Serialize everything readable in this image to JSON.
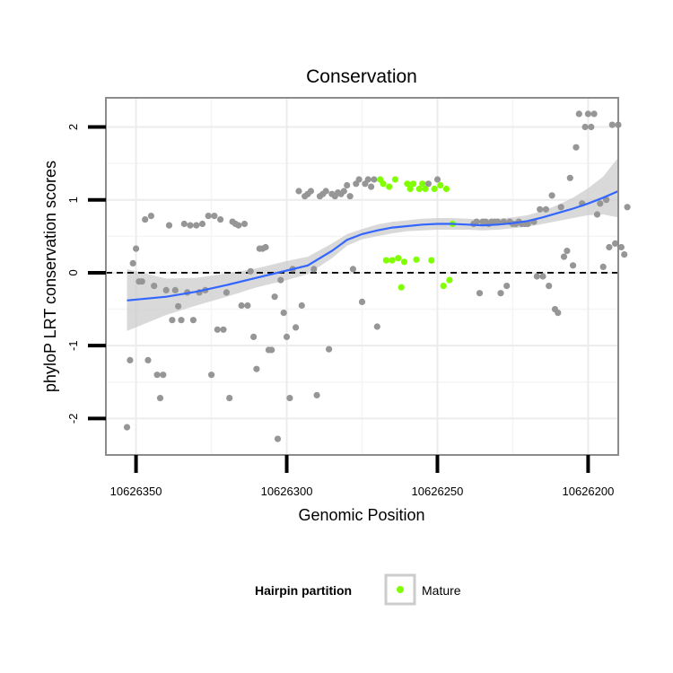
{
  "chart_data": {
    "type": "scatter",
    "title": "Conservation",
    "xlabel": "Genomic Position",
    "ylabel": "phyloP LRT conservation scores",
    "x_reversed": true,
    "xlim": [
      10626360,
      10626190
    ],
    "ylim": [
      -2.5,
      2.4
    ],
    "x_ticks": [
      10626350,
      10626300,
      10626250,
      10626200
    ],
    "x_tick_labels": [
      "10626350",
      "10626300",
      "10626250",
      "10626200"
    ],
    "y_ticks": [
      -2,
      -1,
      0,
      1,
      2
    ],
    "y_tick_labels": [
      "-2",
      "-1",
      "0",
      "1",
      "2"
    ],
    "grid": true,
    "reference_line": {
      "y": 0,
      "style": "dashed",
      "color": "#000000"
    },
    "legend": {
      "title": "Hairpin partition",
      "placement": "bottom",
      "entries": [
        {
          "label": "Mature",
          "color": "#7fff00"
        }
      ]
    },
    "colors": {
      "other": "#969696",
      "mature": "#7fff00",
      "smooth": "#3366ff",
      "ribbon": "#cccccc"
    },
    "series": [
      {
        "name": "",
        "color": "#969696",
        "points": [
          [
            10626353,
            -2.12
          ],
          [
            10626352,
            -1.2
          ],
          [
            10626351,
            0.13
          ],
          [
            10626350,
            0.33
          ],
          [
            10626349,
            -0.12
          ],
          [
            10626348,
            -0.12
          ],
          [
            10626347,
            0.73
          ],
          [
            10626346,
            -1.2
          ],
          [
            10626345,
            0.78
          ],
          [
            10626344,
            -0.18
          ],
          [
            10626343,
            -1.4
          ],
          [
            10626342,
            -1.72
          ],
          [
            10626341,
            -1.4
          ],
          [
            10626340,
            -0.24
          ],
          [
            10626339,
            0.65
          ],
          [
            10626338,
            -0.65
          ],
          [
            10626337,
            -0.24
          ],
          [
            10626336,
            -0.46
          ],
          [
            10626335,
            -0.65
          ],
          [
            10626334,
            0.67
          ],
          [
            10626333,
            -0.27
          ],
          [
            10626332,
            0.65
          ],
          [
            10626331,
            -0.65
          ],
          [
            10626330,
            0.65
          ],
          [
            10626329,
            -0.27
          ],
          [
            10626328,
            0.67
          ],
          [
            10626327,
            -0.24
          ],
          [
            10626326,
            0.78
          ],
          [
            10626325,
            -1.4
          ],
          [
            10626324,
            0.78
          ],
          [
            10626323,
            -0.78
          ],
          [
            10626322,
            0.73
          ],
          [
            10626321,
            -0.78
          ],
          [
            10626320,
            -0.27
          ],
          [
            10626319,
            -1.72
          ],
          [
            10626318,
            0.7
          ],
          [
            10626317,
            0.67
          ],
          [
            10626316,
            0.65
          ],
          [
            10626315,
            -0.45
          ],
          [
            10626314,
            0.67
          ],
          [
            10626313,
            -0.45
          ],
          [
            10626312,
            0.02
          ],
          [
            10626311,
            -0.88
          ],
          [
            10626310,
            -1.32
          ],
          [
            10626309,
            0.33
          ],
          [
            10626308,
            0.33
          ],
          [
            10626307,
            0.35
          ],
          [
            10626306,
            -1.06
          ],
          [
            10626305,
            -1.06
          ],
          [
            10626304,
            -0.33
          ],
          [
            10626303,
            -2.28
          ],
          [
            10626302,
            -0.1
          ],
          [
            10626301,
            -0.55
          ],
          [
            10626300,
            -0.88
          ],
          [
            10626299,
            -1.72
          ],
          [
            10626298,
            0.05
          ],
          [
            10626297,
            -0.75
          ],
          [
            10626296,
            1.12
          ],
          [
            10626295,
            -0.45
          ],
          [
            10626294,
            1.05
          ],
          [
            10626293,
            1.08
          ],
          [
            10626292,
            1.12
          ],
          [
            10626291,
            0.05
          ],
          [
            10626290,
            -1.68
          ],
          [
            10626289,
            1.05
          ],
          [
            10626288,
            1.08
          ],
          [
            10626287,
            1.12
          ],
          [
            10626286,
            -1.05
          ],
          [
            10626285,
            1.08
          ],
          [
            10626284,
            1.05
          ],
          [
            10626283,
            1.1
          ],
          [
            10626282,
            1.08
          ],
          [
            10626281,
            1.12
          ],
          [
            10626280,
            1.2
          ],
          [
            10626279,
            1.05
          ],
          [
            10626278,
            0.05
          ],
          [
            10626277,
            1.22
          ],
          [
            10626276,
            1.28
          ],
          [
            10626275,
            -0.4
          ],
          [
            10626274,
            1.22
          ],
          [
            10626273,
            1.28
          ],
          [
            10626272,
            1.18
          ],
          [
            10626271,
            1.28
          ],
          [
            10626270,
            -0.74
          ],
          [
            10626253,
            1.22
          ],
          [
            10626250,
            1.28
          ],
          [
            10626238,
            0.67
          ],
          [
            10626237,
            0.7
          ],
          [
            10626236,
            -0.28
          ],
          [
            10626235,
            0.7
          ],
          [
            10626234,
            0.7
          ],
          [
            10626233,
            0.67
          ],
          [
            10626232,
            0.7
          ],
          [
            10626231,
            0.7
          ],
          [
            10626230,
            0.7
          ],
          [
            10626229,
            -0.28
          ],
          [
            10626228,
            0.7
          ],
          [
            10626227,
            -0.18
          ],
          [
            10626226,
            0.7
          ],
          [
            10626225,
            0.67
          ],
          [
            10626224,
            0.67
          ],
          [
            10626223,
            0.7
          ],
          [
            10626222,
            0.67
          ],
          [
            10626221,
            0.67
          ],
          [
            10626220,
            0.67
          ],
          [
            10626218,
            0.7
          ],
          [
            10626217,
            -0.05
          ],
          [
            10626216,
            0.87
          ],
          [
            10626215,
            -0.05
          ],
          [
            10626214,
            0.87
          ],
          [
            10626213,
            -0.18
          ],
          [
            10626212,
            1.06
          ],
          [
            10626211,
            -0.5
          ],
          [
            10626210,
            -0.55
          ],
          [
            10626209,
            0.9
          ],
          [
            10626208,
            0.22
          ],
          [
            10626207,
            0.3
          ],
          [
            10626206,
            1.3
          ],
          [
            10626205,
            0.1
          ],
          [
            10626204,
            1.72
          ],
          [
            10626203,
            2.18
          ],
          [
            10626202,
            0.95
          ],
          [
            10626201,
            2.0
          ],
          [
            10626200,
            2.18
          ],
          [
            10626199,
            2.0
          ],
          [
            10626198,
            2.18
          ],
          [
            10626197,
            0.8
          ],
          [
            10626196,
            0.95
          ],
          [
            10626195,
            0.08
          ],
          [
            10626194,
            1.0
          ],
          [
            10626193,
            0.35
          ],
          [
            10626192,
            2.03
          ],
          [
            10626191,
            0.4
          ],
          [
            10626190,
            2.03
          ],
          [
            10626189,
            0.35
          ],
          [
            10626188,
            0.25
          ],
          [
            10626187,
            0.9
          ]
        ]
      },
      {
        "name": "Mature",
        "color": "#7fff00",
        "points": [
          [
            10626269,
            1.28
          ],
          [
            10626268,
            1.22
          ],
          [
            10626267,
            0.17
          ],
          [
            10626266,
            1.18
          ],
          [
            10626265,
            0.17
          ],
          [
            10626264,
            1.28
          ],
          [
            10626263,
            0.2
          ],
          [
            10626262,
            -0.2
          ],
          [
            10626261,
            0.15
          ],
          [
            10626260,
            1.22
          ],
          [
            10626259,
            1.15
          ],
          [
            10626258,
            1.22
          ],
          [
            10626257,
            0.18
          ],
          [
            10626256,
            1.15
          ],
          [
            10626255,
            1.22
          ],
          [
            10626254,
            1.15
          ],
          [
            10626252,
            0.17
          ],
          [
            10626251,
            1.15
          ],
          [
            10626249,
            1.2
          ],
          [
            10626248,
            -0.18
          ],
          [
            10626247,
            1.15
          ],
          [
            10626246,
            -0.1
          ],
          [
            10626245,
            0.67
          ]
        ]
      }
    ],
    "smooth": {
      "x": [
        10626353,
        10626340,
        10626330,
        10626320,
        10626310,
        10626300,
        10626293,
        10626285,
        10626280,
        10626275,
        10626270,
        10626265,
        10626260,
        10626255,
        10626250,
        10626245,
        10626240,
        10626235,
        10626230,
        10626225,
        10626220,
        10626215,
        10626210,
        10626205,
        10626200,
        10626195,
        10626190
      ],
      "y": [
        -0.38,
        -0.33,
        -0.26,
        -0.17,
        -0.07,
        0.03,
        0.1,
        0.3,
        0.45,
        0.53,
        0.58,
        0.62,
        0.64,
        0.66,
        0.67,
        0.67,
        0.66,
        0.65,
        0.66,
        0.68,
        0.71,
        0.76,
        0.82,
        0.88,
        0.95,
        1.03,
        1.12
      ],
      "lower": [
        -0.8,
        -0.58,
        -0.45,
        -0.33,
        -0.2,
        -0.1,
        -0.02,
        0.2,
        0.37,
        0.46,
        0.5,
        0.54,
        0.57,
        0.58,
        0.59,
        0.59,
        0.59,
        0.58,
        0.59,
        0.61,
        0.63,
        0.67,
        0.71,
        0.75,
        0.79,
        0.8,
        0.76
      ],
      "upper": [
        0.05,
        -0.08,
        -0.07,
        -0.01,
        0.06,
        0.16,
        0.22,
        0.4,
        0.53,
        0.6,
        0.66,
        0.7,
        0.72,
        0.74,
        0.75,
        0.75,
        0.74,
        0.73,
        0.74,
        0.76,
        0.79,
        0.85,
        0.93,
        1.03,
        1.16,
        1.32,
        1.58
      ]
    }
  }
}
